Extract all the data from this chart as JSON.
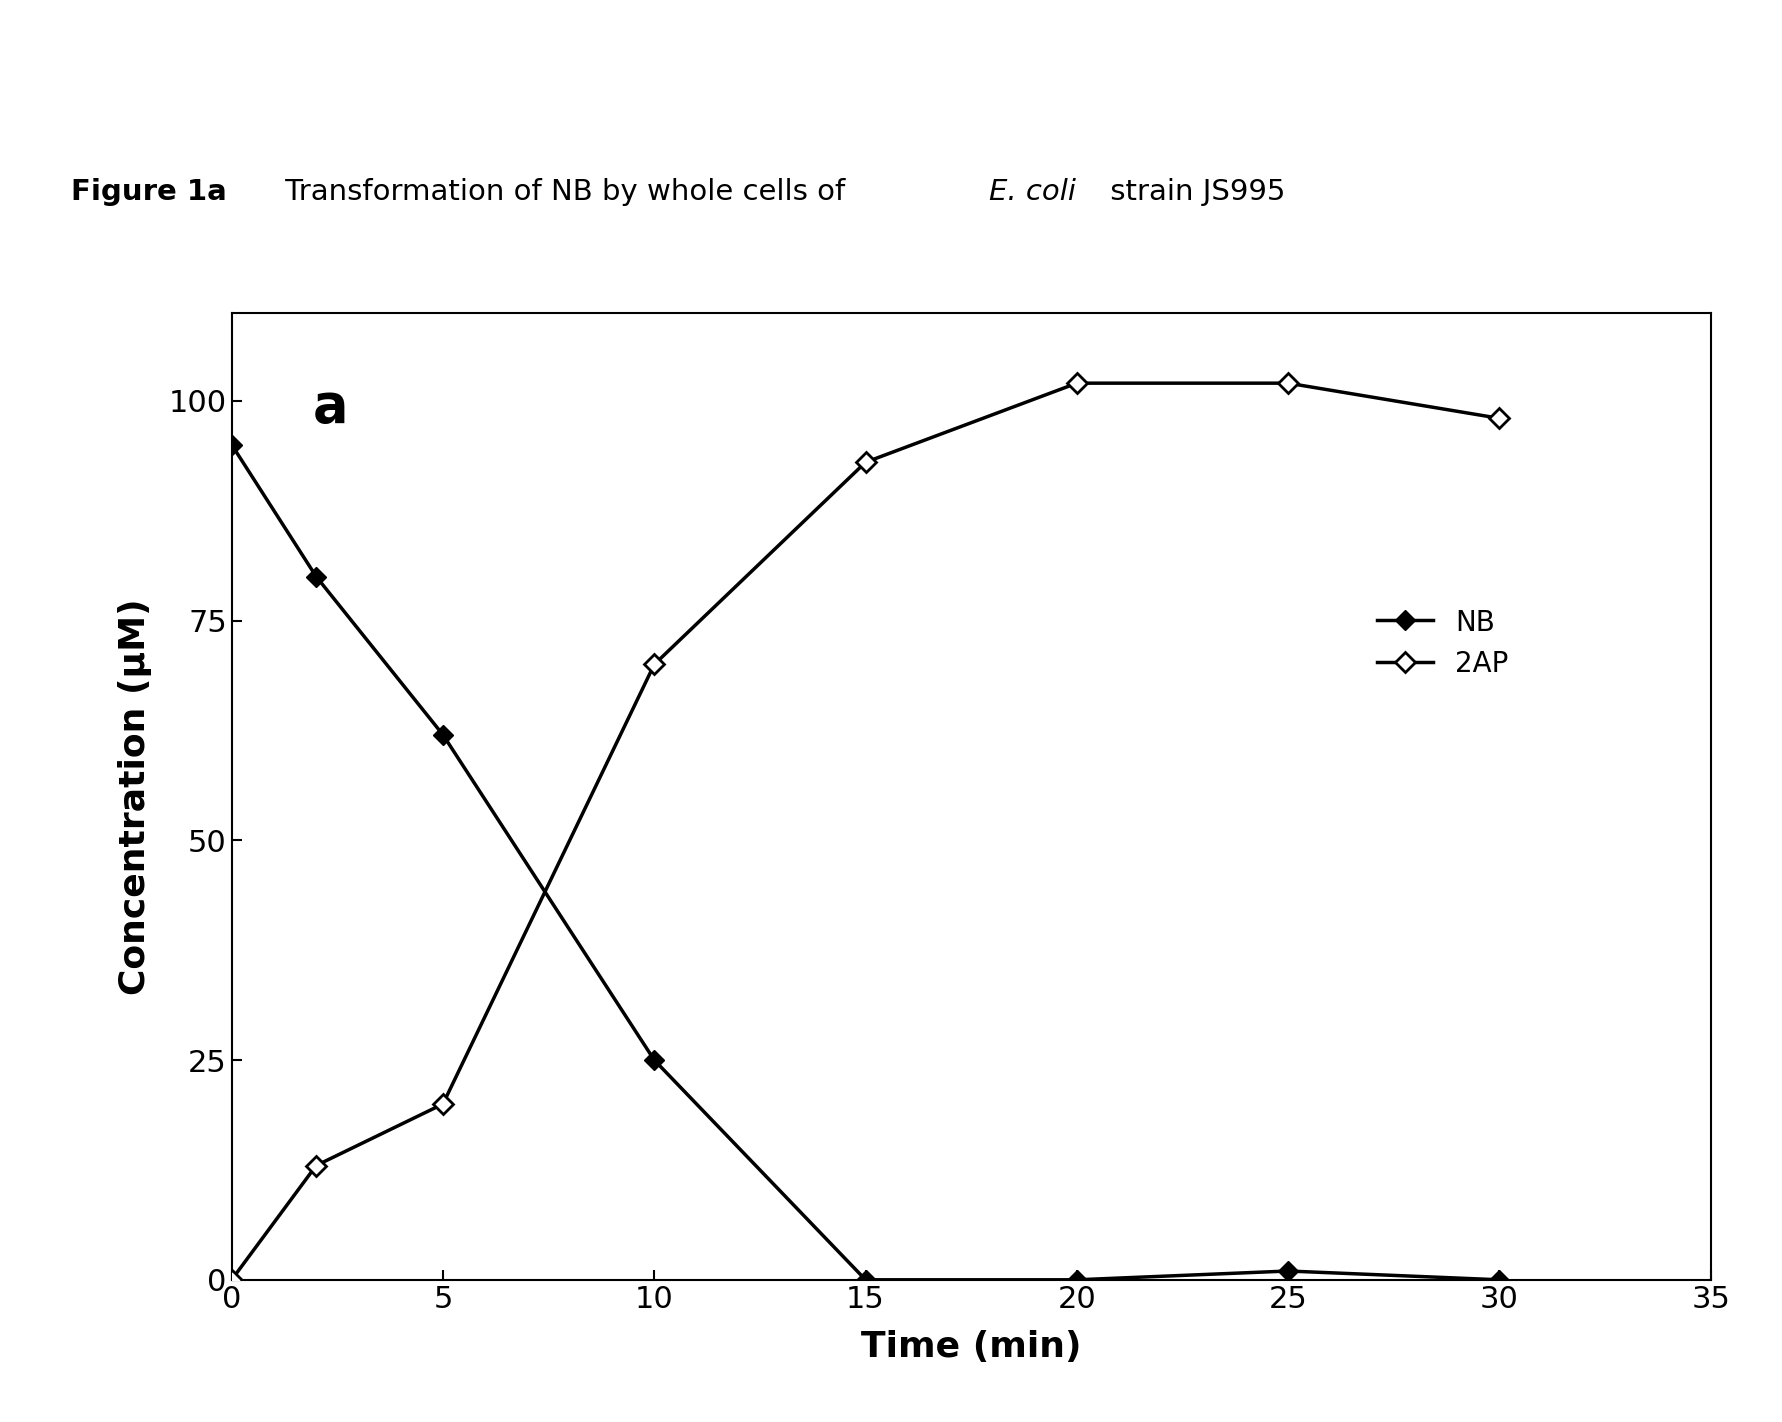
{
  "panel_label": "a",
  "xlabel": "Time (min)",
  "ylabel": "Concentration (μM)",
  "xlim": [
    0,
    35
  ],
  "ylim": [
    0,
    110
  ],
  "xticks": [
    0,
    5,
    10,
    15,
    20,
    25,
    30,
    35
  ],
  "yticks": [
    0,
    25,
    50,
    75,
    100
  ],
  "NB_x": [
    0,
    2,
    5,
    10,
    15,
    20,
    25,
    30
  ],
  "NB_y": [
    95,
    80,
    62,
    25,
    0,
    0,
    1,
    0
  ],
  "AP2_x": [
    0,
    2,
    5,
    10,
    15,
    20,
    25,
    30
  ],
  "AP2_y": [
    0,
    13,
    20,
    70,
    93,
    102,
    102,
    98
  ],
  "line_color": "#000000",
  "line_width": 2.5,
  "marker_size": 10,
  "legend_NB": "NB",
  "legend_2AP": "2AP",
  "background_color": "#ffffff",
  "title_fontsize": 21,
  "axis_label_fontsize": 26,
  "tick_fontsize": 22,
  "legend_fontsize": 20,
  "panel_label_fontsize": 38
}
